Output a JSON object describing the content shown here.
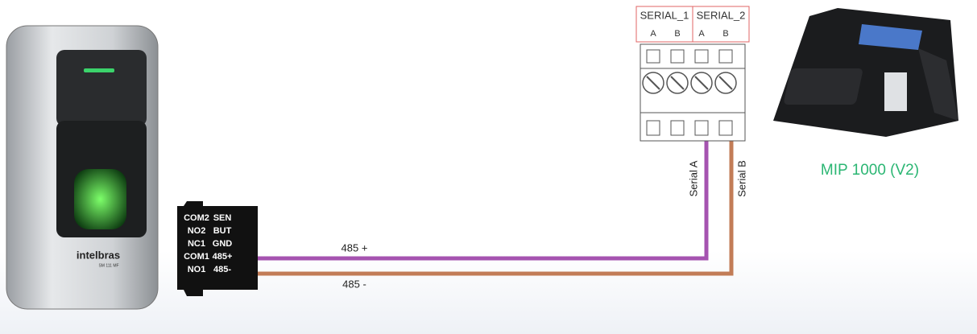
{
  "access_device": {
    "brand": "intelbras",
    "model": "SM 111 MF"
  },
  "connector": {
    "rows": [
      [
        "COM2",
        "SEN"
      ],
      [
        "NO2",
        "BUT"
      ],
      [
        "NC1",
        "GND"
      ],
      [
        "COM1",
        "485+"
      ],
      [
        "NO1",
        "485-"
      ]
    ]
  },
  "wires": [
    {
      "label": "485 +",
      "terminal_label": "Serial A"
    },
    {
      "label": "485 -",
      "terminal_label": "Serial B"
    }
  ],
  "terminal_block": {
    "groups": [
      {
        "name": "SERIAL_1",
        "pins": [
          "A",
          "B"
        ]
      },
      {
        "name": "SERIAL_2",
        "pins": [
          "A",
          "B"
        ]
      }
    ]
  },
  "phone": {
    "label": "MIP 1000 (V2)"
  }
}
